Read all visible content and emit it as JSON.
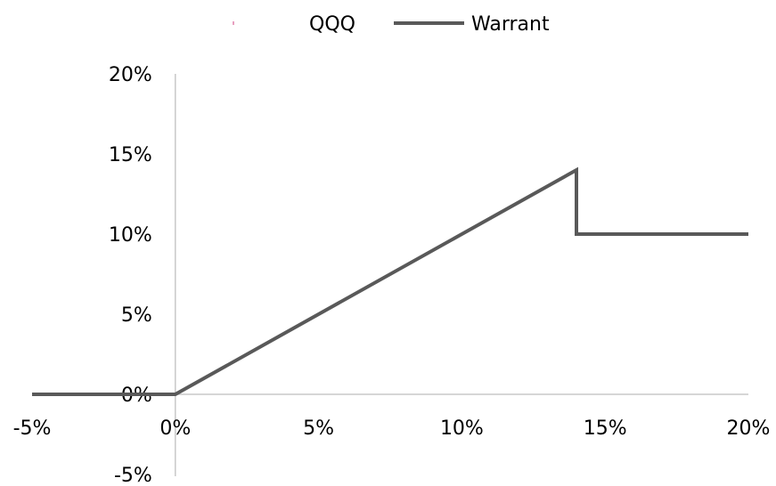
{
  "chart_data": {
    "type": "line",
    "legend": {
      "placement": "top-center",
      "entries": [
        {
          "name": "QQQ",
          "color": "#e8a0c0"
        },
        {
          "name": "Warrant",
          "color": "#595959"
        }
      ]
    },
    "series": [
      {
        "name": "QQQ",
        "color": "#e8a0c0",
        "x": [],
        "y": []
      },
      {
        "name": "Warrant",
        "color": "#595959",
        "x": [
          -5,
          0,
          14,
          14,
          20
        ],
        "y": [
          0,
          0,
          14,
          10,
          10
        ]
      }
    ],
    "xlim": [
      -5,
      20
    ],
    "ylim": [
      -5,
      20
    ],
    "x_ticks": [
      -5,
      0,
      5,
      10,
      15,
      20
    ],
    "y_ticks": [
      -5,
      0,
      5,
      10,
      15,
      20
    ],
    "x_tick_labels": [
      "-5%",
      "0%",
      "5%",
      "10%",
      "15%",
      "20%"
    ],
    "y_tick_labels": [
      "-5%",
      "0%",
      "5%",
      "10%",
      "15%",
      "20%"
    ],
    "grid": false,
    "axis_color": "#c8c8c8"
  }
}
